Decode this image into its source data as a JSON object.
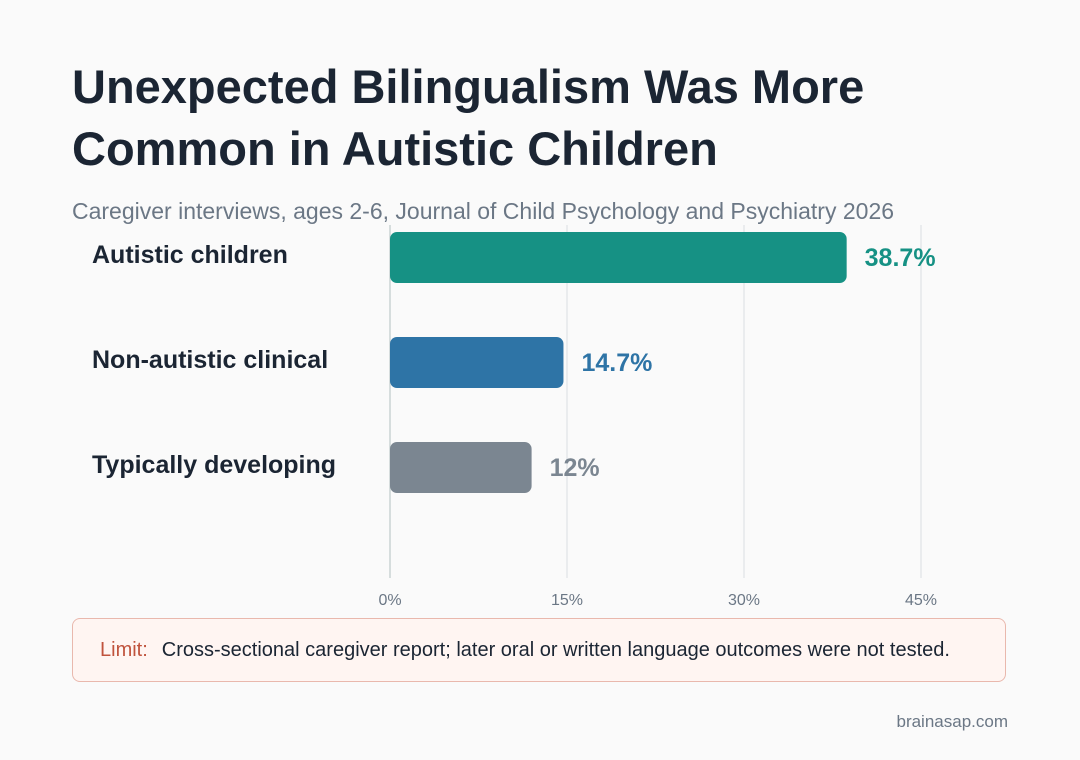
{
  "title": "Unexpected Bilingualism Was More Common in Autistic Children",
  "subtitle": "Caregiver interviews, ages 2-6, Journal of Child Psychology and Psychiatry 2026",
  "chart_data": {
    "type": "bar",
    "orientation": "horizontal",
    "categories": [
      "Autistic children",
      "Non-autistic clinical",
      "Typically developing"
    ],
    "values": [
      38.7,
      14.7,
      12
    ],
    "value_labels": [
      "38.7%",
      "14.7%",
      "12%"
    ],
    "colors": [
      "#169184",
      "#2e74a6",
      "#7b8691"
    ],
    "xlim": [
      0,
      45
    ],
    "x_ticks": [
      0,
      15,
      30,
      45
    ],
    "x_tick_labels": [
      "0%",
      "15%",
      "30%",
      "45%"
    ],
    "grid": true
  },
  "limit": {
    "tag": "Limit:",
    "text": "Cross-sectional caregiver report; later oral or written language outcomes were not tested."
  },
  "source": "brainasap.com"
}
